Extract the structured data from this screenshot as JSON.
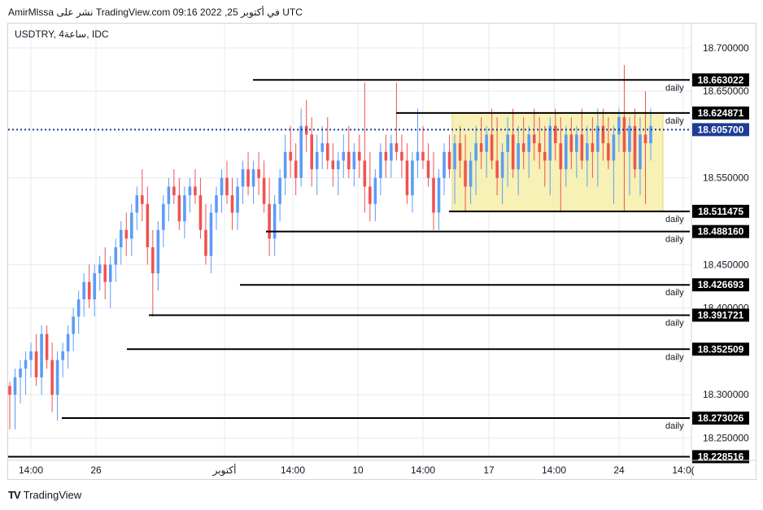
{
  "header": {
    "text": "AmirMlssa نشر على TradingView.com في أكتوبر 25, 2022 09:16 UTC"
  },
  "symbol": {
    "text": "USDTRY, 4ساعة, IDC"
  },
  "footer": {
    "brand": "TradingView",
    "logo": "TV"
  },
  "colors": {
    "up": "#5b9cf6",
    "down": "#ef5350",
    "box_fill": "#f6eea9",
    "grid": "#e6e9f0",
    "level": "#000000",
    "current": "#1e3c96"
  },
  "chart_data": {
    "type": "candlestick",
    "ylim": [
      18.228,
      18.728
    ],
    "y_ticks": [
      "18.700000",
      "18.650000",
      "18.550000",
      "18.450000",
      "18.400000",
      "18.300000",
      "18.250000"
    ],
    "x_ticks": [
      "14:00",
      "26",
      "أكتوبر",
      "14:00",
      "10",
      "14:00",
      "17",
      "14:00",
      "24",
      "14:0("
    ],
    "levels": [
      {
        "value": 18.663022,
        "label": "18.663022",
        "tag": "daily"
      },
      {
        "value": 18.624871,
        "label": "18.624871",
        "tag": "daily"
      },
      {
        "value": 18.511475,
        "label": "18.511475",
        "tag": "daily"
      },
      {
        "value": 18.48816,
        "label": "18.488160",
        "tag": "daily"
      },
      {
        "value": 18.426693,
        "label": "18.426693",
        "tag": "daily"
      },
      {
        "value": 18.391721,
        "label": "18.391721",
        "tag": "daily"
      },
      {
        "value": 18.352509,
        "label": "18.352509",
        "tag": "daily"
      },
      {
        "value": 18.273026,
        "label": "18.273026",
        "tag": "daily"
      },
      {
        "value": 18.228516,
        "label": "18.228516",
        "tag": ""
      }
    ],
    "current_price": {
      "value": 18.6057,
      "label": "18.605700"
    },
    "box": {
      "top": 18.624871,
      "bottom": 18.511475
    },
    "candles": [
      [
        18.31,
        18.315,
        18.26,
        18.3
      ],
      [
        18.3,
        18.33,
        18.26,
        18.32
      ],
      [
        18.32,
        18.34,
        18.29,
        18.33
      ],
      [
        18.33,
        18.35,
        18.3,
        18.34
      ],
      [
        18.34,
        18.36,
        18.32,
        18.35
      ],
      [
        18.35,
        18.37,
        18.31,
        18.32
      ],
      [
        18.32,
        18.38,
        18.3,
        18.37
      ],
      [
        18.37,
        18.38,
        18.33,
        18.34
      ],
      [
        18.34,
        18.36,
        18.28,
        18.3
      ],
      [
        18.3,
        18.35,
        18.27,
        18.34
      ],
      [
        18.34,
        18.36,
        18.32,
        18.35
      ],
      [
        18.35,
        18.38,
        18.33,
        18.37
      ],
      [
        18.37,
        18.4,
        18.35,
        18.39
      ],
      [
        18.39,
        18.42,
        18.37,
        18.41
      ],
      [
        18.41,
        18.44,
        18.39,
        18.43
      ],
      [
        18.43,
        18.45,
        18.4,
        18.41
      ],
      [
        18.41,
        18.45,
        18.39,
        18.44
      ],
      [
        18.44,
        18.46,
        18.42,
        18.45
      ],
      [
        18.45,
        18.47,
        18.41,
        18.43
      ],
      [
        18.43,
        18.46,
        18.4,
        18.45
      ],
      [
        18.45,
        18.48,
        18.43,
        18.47
      ],
      [
        18.47,
        18.5,
        18.45,
        18.49
      ],
      [
        18.49,
        18.51,
        18.46,
        18.48
      ],
      [
        18.48,
        18.52,
        18.46,
        18.51
      ],
      [
        18.51,
        18.54,
        18.49,
        18.53
      ],
      [
        18.53,
        18.56,
        18.5,
        18.52
      ],
      [
        18.52,
        18.54,
        18.45,
        18.47
      ],
      [
        18.47,
        18.49,
        18.39,
        18.44
      ],
      [
        18.44,
        18.5,
        18.42,
        18.49
      ],
      [
        18.49,
        18.53,
        18.47,
        18.52
      ],
      [
        18.52,
        18.55,
        18.5,
        18.54
      ],
      [
        18.54,
        18.56,
        18.52,
        18.53
      ],
      [
        18.53,
        18.55,
        18.49,
        18.5
      ],
      [
        18.5,
        18.54,
        18.48,
        18.53
      ],
      [
        18.53,
        18.55,
        18.51,
        18.54
      ],
      [
        18.54,
        18.56,
        18.52,
        18.53
      ],
      [
        18.53,
        18.55,
        18.48,
        18.49
      ],
      [
        18.49,
        18.52,
        18.45,
        18.46
      ],
      [
        18.46,
        18.52,
        18.44,
        18.51
      ],
      [
        18.51,
        18.54,
        18.49,
        18.53
      ],
      [
        18.53,
        18.56,
        18.51,
        18.55
      ],
      [
        18.55,
        18.57,
        18.52,
        18.53
      ],
      [
        18.53,
        18.55,
        18.49,
        18.51
      ],
      [
        18.51,
        18.55,
        18.49,
        18.54
      ],
      [
        18.54,
        18.57,
        18.52,
        18.56
      ],
      [
        18.56,
        18.58,
        18.53,
        18.54
      ],
      [
        18.54,
        18.57,
        18.52,
        18.56
      ],
      [
        18.56,
        18.58,
        18.53,
        18.55
      ],
      [
        18.55,
        18.57,
        18.51,
        18.52
      ],
      [
        18.52,
        18.55,
        18.46,
        18.48
      ],
      [
        18.48,
        18.53,
        18.46,
        18.52
      ],
      [
        18.52,
        18.56,
        18.5,
        18.55
      ],
      [
        18.55,
        18.6,
        18.53,
        18.58
      ],
      [
        18.58,
        18.61,
        18.55,
        18.57
      ],
      [
        18.57,
        18.59,
        18.53,
        18.55
      ],
      [
        18.55,
        18.63,
        18.54,
        18.61
      ],
      [
        18.61,
        18.64,
        18.58,
        18.6
      ],
      [
        18.6,
        18.62,
        18.54,
        18.56
      ],
      [
        18.56,
        18.6,
        18.53,
        18.58
      ],
      [
        18.58,
        18.61,
        18.56,
        18.59
      ],
      [
        18.59,
        18.62,
        18.56,
        18.57
      ],
      [
        18.57,
        18.59,
        18.54,
        18.56
      ],
      [
        18.56,
        18.58,
        18.53,
        18.57
      ],
      [
        18.57,
        18.6,
        18.55,
        18.58
      ],
      [
        18.58,
        18.61,
        18.55,
        18.56
      ],
      [
        18.56,
        18.59,
        18.54,
        18.58
      ],
      [
        18.58,
        18.6,
        18.55,
        18.57
      ],
      [
        18.57,
        18.66,
        18.51,
        18.54
      ],
      [
        18.54,
        18.58,
        18.5,
        18.52
      ],
      [
        18.52,
        18.56,
        18.5,
        18.55
      ],
      [
        18.55,
        18.59,
        18.53,
        18.58
      ],
      [
        18.58,
        18.6,
        18.55,
        18.57
      ],
      [
        18.57,
        18.6,
        18.55,
        18.59
      ],
      [
        18.59,
        18.66,
        18.57,
        18.58
      ],
      [
        18.58,
        18.6,
        18.55,
        18.57
      ],
      [
        18.57,
        18.59,
        18.52,
        18.53
      ],
      [
        18.53,
        18.58,
        18.51,
        18.57
      ],
      [
        18.57,
        18.63,
        18.55,
        18.58
      ],
      [
        18.58,
        18.61,
        18.56,
        18.57
      ],
      [
        18.57,
        18.59,
        18.54,
        18.55
      ],
      [
        18.55,
        18.58,
        18.49,
        18.51
      ],
      [
        18.51,
        18.56,
        18.49,
        18.55
      ],
      [
        18.55,
        18.59,
        18.53,
        18.58
      ],
      [
        18.58,
        18.6,
        18.55,
        18.56
      ],
      [
        18.56,
        18.6,
        18.52,
        18.59
      ],
      [
        18.59,
        18.61,
        18.55,
        18.57
      ],
      [
        18.57,
        18.6,
        18.51,
        18.54
      ],
      [
        18.54,
        18.58,
        18.52,
        18.57
      ],
      [
        18.57,
        18.61,
        18.53,
        18.59
      ],
      [
        18.59,
        18.62,
        18.56,
        18.58
      ],
      [
        18.58,
        18.61,
        18.55,
        18.6
      ],
      [
        18.6,
        18.63,
        18.56,
        18.57
      ],
      [
        18.57,
        18.62,
        18.53,
        18.55
      ],
      [
        18.55,
        18.59,
        18.52,
        18.58
      ],
      [
        18.58,
        18.62,
        18.54,
        18.6
      ],
      [
        18.6,
        18.63,
        18.55,
        18.56
      ],
      [
        18.56,
        18.61,
        18.53,
        18.59
      ],
      [
        18.59,
        18.62,
        18.56,
        18.58
      ],
      [
        18.58,
        18.61,
        18.55,
        18.6
      ],
      [
        18.6,
        18.63,
        18.57,
        18.59
      ],
      [
        18.59,
        18.62,
        18.56,
        18.58
      ],
      [
        18.58,
        18.61,
        18.54,
        18.57
      ],
      [
        18.57,
        18.62,
        18.53,
        18.61
      ],
      [
        18.61,
        18.63,
        18.57,
        18.59
      ],
      [
        18.59,
        18.62,
        18.51,
        18.56
      ],
      [
        18.56,
        18.61,
        18.54,
        18.6
      ],
      [
        18.6,
        18.62,
        18.56,
        18.58
      ],
      [
        18.58,
        18.61,
        18.55,
        18.6
      ],
      [
        18.6,
        18.63,
        18.56,
        18.57
      ],
      [
        18.57,
        18.61,
        18.54,
        18.59
      ],
      [
        18.59,
        18.62,
        18.55,
        18.58
      ],
      [
        18.58,
        18.63,
        18.54,
        18.61
      ],
      [
        18.61,
        18.63,
        18.57,
        18.59
      ],
      [
        18.59,
        18.62,
        18.56,
        18.57
      ],
      [
        18.57,
        18.61,
        18.52,
        18.6
      ],
      [
        18.6,
        18.63,
        18.58,
        18.62
      ],
      [
        18.62,
        18.68,
        18.51,
        18.58
      ],
      [
        18.58,
        18.62,
        18.53,
        18.61
      ],
      [
        18.61,
        18.63,
        18.55,
        18.56
      ],
      [
        18.56,
        18.62,
        18.53,
        18.6
      ],
      [
        18.6,
        18.65,
        18.52,
        18.59
      ],
      [
        18.59,
        18.63,
        18.57,
        18.61
      ]
    ]
  }
}
